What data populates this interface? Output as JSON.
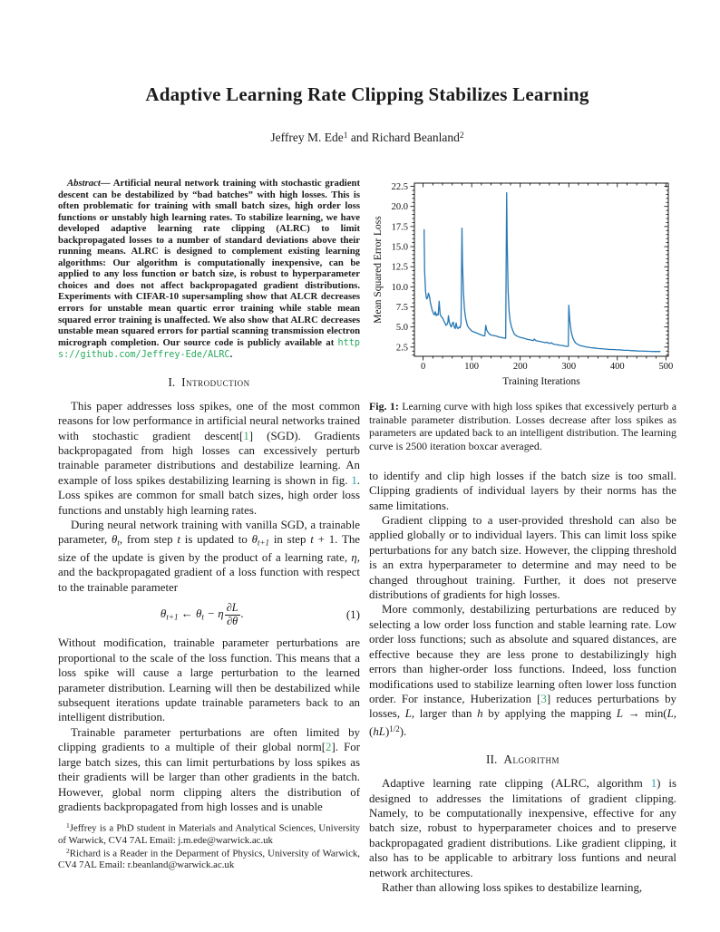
{
  "paper": {
    "title": "Adaptive Learning Rate Clipping Stabilizes Learning",
    "authors_runs": [
      {
        "t": "Jeffrey M. Ede"
      },
      {
        "t": "1",
        "s": "sup"
      },
      {
        "t": " and Richard Beanland"
      },
      {
        "t": "2",
        "s": "sup"
      }
    ]
  },
  "abstract": {
    "runs": [
      {
        "t": "Abstract",
        "s": "ib"
      },
      {
        "t": "— Artificial neural network training with stochastic gradient descent can be destabilized by “bad batches” with high losses. This is often problematic for training with small batch sizes, high order loss functions or unstably high learning rates. To stabilize learning, we have developed adaptive learning rate clipping (ALRC) to limit backpropagated losses to a number of standard deviations above their running means. ALRC is designed to complement existing learning algorithms: Our algorithm is computationally inexpensive, can be applied to any loss function or batch size, is robust to hyperparameter choices and does not affect backpropagated gradient distributions. Experiments with CIFAR-10 supersampling show that ALCR decreases errors for unstable mean quartic error training while stable mean squared error training is unaffected. We also show that ALRC decreases unstable mean squared errors for partial scanning transmission electron micrograph completion. Our source code is publicly available at "
      },
      {
        "t": "https://github.com/Jeffrey-Ede/ALRC",
        "s": "url"
      },
      {
        "t": "."
      }
    ]
  },
  "sections": {
    "intro": {
      "num": "I.",
      "label": "Introduction"
    },
    "algorithm": {
      "num": "II.",
      "label": "Algorithm"
    }
  },
  "left": {
    "p1_runs": [
      {
        "t": "This paper addresses loss spikes, one of the most common reasons for low performance in artificial neural networks trained with stochastic gradient descent["
      },
      {
        "t": "1",
        "s": "cite"
      },
      {
        "t": "] (SGD). Gradients backpropagated from high losses can excessively perturb trainable parameter distributions and destabilize learning. An example of loss spikes destabilizing learning is shown in fig. "
      },
      {
        "t": "1",
        "s": "ref"
      },
      {
        "t": ". Loss spikes are common for small batch sizes, high order loss functions and unstably high learning rates."
      }
    ],
    "p2_runs": [
      {
        "t": "During neural network training with vanilla SGD, a trainable parameter, "
      },
      {
        "t": "θ",
        "s": "i"
      },
      {
        "t": "t",
        "s": "sub"
      },
      {
        "t": ", from step "
      },
      {
        "t": "t",
        "s": "i"
      },
      {
        "t": " is updated to "
      },
      {
        "t": "θ",
        "s": "i"
      },
      {
        "t": "t+1",
        "s": "sub"
      },
      {
        "t": " in step "
      },
      {
        "t": "t",
        "s": "i"
      },
      {
        "t": " + 1. The size of the update is given by the product of a learning rate, "
      },
      {
        "t": "η",
        "s": "i"
      },
      {
        "t": ", and the backpropagated gradient of a loss function with respect to the trainable parameter"
      }
    ],
    "p3_runs": [
      {
        "t": "Without modification, trainable parameter perturbations are proportional to the scale of the loss function. This means that a loss spike will cause a large perturbation to the learned parameter distribution. Learning will then be destabilized while subsequent iterations update trainable parameters back to an intelligent distribution."
      }
    ],
    "p4_runs": [
      {
        "t": "Trainable parameter perturbations are often limited by clipping gradients to a multiple of their global norm["
      },
      {
        "t": "2",
        "s": "cite"
      },
      {
        "t": "]. For large batch sizes, this can limit perturbations by loss spikes as their gradients will be larger than other gradients in the batch. However, global norm clipping alters the distribution of gradients backpropagated from high losses and is unable"
      }
    ]
  },
  "equation": {
    "lhs_theta": "θ",
    "lhs_sub": "t+1",
    "arrow": " ← ",
    "rhs_theta": "θ",
    "rhs_sub": "t",
    "minus_eta": " − η",
    "frac_num": "∂L",
    "frac_den": "∂θ",
    "period": ".",
    "number": "(1)"
  },
  "footnotes": {
    "fn1_runs": [
      {
        "t": "1",
        "s": "sup"
      },
      {
        "t": "Jeffrey is a PhD student in Materials and Analytical Sciences, University of Warwick, CV4 7AL Email: j.m.ede@warwick.ac.uk"
      }
    ],
    "fn2_runs": [
      {
        "t": "2",
        "s": "sup"
      },
      {
        "t": "Richard is a Reader in the Deparment of Physics, University of Warwick, CV4 7AL Email: r.beanland@warwick.ac.uk"
      }
    ]
  },
  "figure": {
    "caption_runs": [
      {
        "t": "Fig. 1:",
        "s": "b"
      },
      {
        "t": " Learning curve with high loss spikes that excessively perturb a trainable parameter distribution. Losses decrease after loss spikes as parameters are updated back to an intelligent distribution. The learning curve is 2500 iteration boxcar averaged."
      }
    ]
  },
  "right": {
    "p1_runs": [
      {
        "t": "to identify and clip high losses if the batch size is too small. Clipping gradients of individual layers by their norms has the same limitations."
      }
    ],
    "p2_runs": [
      {
        "t": "Gradient clipping to a user-provided threshold can also be applied globally or to individual layers. This can limit loss spike perturbations for any batch size. However, the clipping threshold is an extra hyperparameter to determine and may need to be changed throughout training. Further, it does not preserve distributions of gradients for high losses."
      }
    ],
    "p3_runs": [
      {
        "t": "More commonly, destabilizing perturbations are reduced by selecting a low order loss function and stable learning rate. Low order loss functions; such as absolute and squared distances, are effective because they are less prone to destabilizingly high errors than higher-order loss functions. Indeed, loss function modifications used to stabilize learning often lower loss function order. For instance, Huberization ["
      },
      {
        "t": "3",
        "s": "cite"
      },
      {
        "t": "] reduces perturbations by losses, "
      },
      {
        "t": "L",
        "s": "i"
      },
      {
        "t": ", larger than "
      },
      {
        "t": "h",
        "s": "i"
      },
      {
        "t": " by applying the mapping "
      },
      {
        "t": "L",
        "s": "i"
      },
      {
        "t": " → min("
      },
      {
        "t": "L",
        "s": "i"
      },
      {
        "t": ", ("
      },
      {
        "t": "hL",
        "s": "i"
      },
      {
        "t": ")"
      },
      {
        "t": "1/2",
        "s": "sup"
      },
      {
        "t": ")."
      }
    ],
    "p4_runs": [
      {
        "t": "Adaptive learning rate clipping (ALRC, algorithm "
      },
      {
        "t": "1",
        "s": "ref"
      },
      {
        "t": ") is designed to addresses the limitations of gradient clipping. Namely, to be computationally inexpensive, effective for any batch size, robust to hyperparameter choices and to preserve backpropagated gradient distributions. Like gradient clipping, it also has to be applicable to arbitrary loss funtions and neural network architectures."
      }
    ],
    "p5_runs": [
      {
        "t": "Rather than allowing loss spikes to destabilize learning,"
      }
    ]
  },
  "chart_data": {
    "type": "line",
    "title": "",
    "xlabel": "Training Iterations",
    "ylabel": "Mean Squared Error Loss",
    "xlim": [
      -18,
      505
    ],
    "ylim": [
      1.35,
      22.9
    ],
    "xticks": [
      0,
      100,
      200,
      300,
      400,
      500
    ],
    "yticks": [
      2.5,
      5.0,
      7.5,
      10.0,
      12.5,
      15.0,
      17.5,
      20.0,
      22.5
    ],
    "ytick_labels": [
      "2.5",
      "5.0",
      "7.5",
      "10.0",
      "12.5",
      "15.0",
      "17.5",
      "20.0",
      "22.5"
    ],
    "x_minor_step": 20,
    "y_minor_step": 0.5,
    "grid": false,
    "legend": "none",
    "line_color": "#2878b4",
    "series": [
      {
        "name": "mean-squared-error-loss",
        "x": [
          2,
          3,
          5,
          7,
          9,
          11,
          13,
          15,
          17,
          19,
          21,
          23,
          25,
          27,
          29,
          31,
          33,
          35,
          37,
          39,
          41,
          43,
          45,
          47,
          49,
          51,
          52,
          54,
          56,
          58,
          60,
          62,
          64,
          66,
          68,
          70,
          72,
          74,
          76,
          78,
          80,
          81,
          83,
          85,
          87,
          89,
          91,
          94,
          97,
          100,
          104,
          108,
          112,
          116,
          120,
          124,
          127,
          129,
          131,
          134,
          137,
          140,
          144,
          148,
          152,
          156,
          160,
          164,
          168,
          170,
          172,
          173,
          175,
          177,
          179,
          182,
          185,
          188,
          192,
          196,
          200,
          204,
          208,
          212,
          216,
          220,
          224,
          227,
          229,
          232,
          236,
          240,
          244,
          248,
          252,
          255,
          258,
          261,
          264,
          267,
          270,
          274,
          278,
          282,
          286,
          290,
          294,
          297,
          299,
          300,
          302,
          305,
          308,
          311,
          314,
          318,
          322,
          326,
          330,
          335,
          340,
          345,
          350,
          355,
          360,
          365,
          370,
          375,
          380,
          385,
          390,
          395,
          400,
          405,
          410,
          415,
          420,
          425,
          430,
          435,
          440,
          445,
          450,
          455,
          460,
          465,
          470,
          475,
          480,
          485,
          488
        ],
        "y": [
          17.1,
          12.0,
          9.4,
          8.5,
          8.6,
          9.2,
          8.8,
          8.0,
          7.5,
          7.0,
          6.7,
          6.5,
          6.9,
          6.4,
          6.6,
          6.5,
          8.2,
          6.6,
          6.3,
          6.2,
          6.0,
          5.7,
          5.5,
          5.2,
          5.3,
          5.6,
          6.4,
          5.6,
          5.2,
          5.0,
          5.4,
          5.6,
          5.0,
          4.8,
          5.5,
          4.9,
          4.8,
          5.0,
          4.9,
          5.4,
          17.3,
          13.0,
          9.3,
          7.3,
          6.3,
          5.7,
          5.2,
          4.9,
          4.7,
          4.5,
          4.4,
          4.3,
          4.2,
          4.1,
          4.0,
          3.9,
          3.9,
          5.2,
          4.6,
          4.3,
          4.1,
          4.0,
          3.95,
          3.9,
          3.85,
          3.75,
          3.7,
          3.65,
          3.6,
          3.6,
          21.7,
          16.0,
          9.5,
          7.0,
          5.8,
          5.0,
          4.5,
          4.1,
          3.9,
          3.8,
          3.7,
          3.65,
          3.6,
          3.5,
          3.45,
          3.4,
          3.35,
          3.3,
          3.5,
          3.3,
          3.25,
          3.2,
          3.15,
          3.1,
          3.05,
          3.1,
          3.0,
          2.95,
          3.05,
          2.9,
          2.85,
          2.8,
          2.78,
          2.72,
          2.7,
          2.65,
          2.6,
          2.58,
          2.6,
          7.7,
          5.8,
          4.4,
          3.7,
          3.3,
          3.0,
          2.85,
          2.72,
          2.65,
          2.6,
          2.52,
          2.48,
          2.42,
          2.4,
          2.36,
          2.32,
          2.3,
          2.28,
          2.25,
          2.22,
          2.2,
          2.2,
          2.18,
          2.15,
          2.15,
          2.12,
          2.1,
          2.1,
          2.08,
          2.05,
          2.05,
          2.02,
          2.0,
          2.0,
          2.0,
          1.98,
          1.97,
          1.96,
          1.95,
          1.95,
          1.95,
          1.95
        ]
      }
    ]
  }
}
